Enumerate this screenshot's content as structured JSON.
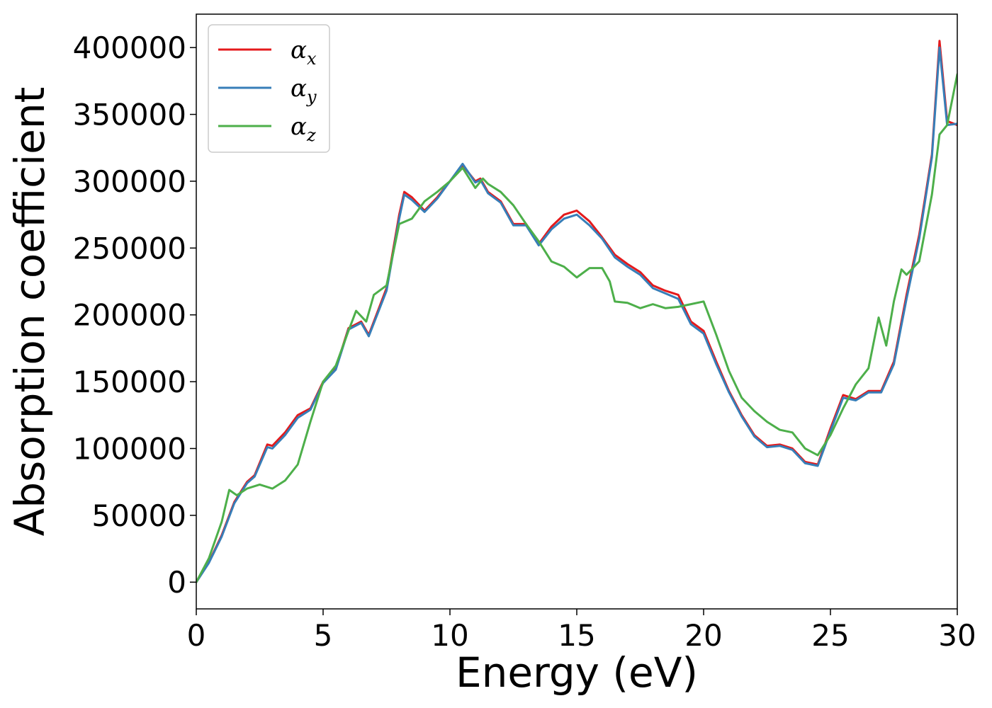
{
  "chart_data": {
    "type": "line",
    "title": "",
    "xlabel": "Energy (eV)",
    "ylabel": "Absorption coefficient",
    "xlim": [
      0,
      30
    ],
    "ylim": [
      -20000,
      425000
    ],
    "xticks": [
      0,
      5,
      10,
      15,
      20,
      25,
      30
    ],
    "yticks": [
      0,
      50000,
      100000,
      150000,
      200000,
      250000,
      300000,
      350000,
      400000
    ],
    "grid": false,
    "legend_position": "top-left",
    "series": [
      {
        "name": "α",
        "subscript": "x",
        "color": "#e41a1c",
        "x": [
          0,
          0.5,
          1.0,
          1.5,
          2.0,
          2.3,
          2.8,
          3.0,
          3.5,
          4.0,
          4.5,
          5.0,
          5.5,
          6.0,
          6.5,
          6.8,
          7.5,
          8.0,
          8.2,
          8.5,
          9.0,
          9.5,
          10.0,
          10.5,
          11.0,
          11.2,
          11.5,
          12.0,
          12.5,
          13.0,
          13.5,
          14.0,
          14.5,
          15.0,
          15.5,
          16.0,
          16.5,
          17.0,
          17.5,
          18.0,
          18.5,
          19.0,
          19.5,
          20.0,
          20.5,
          21.0,
          21.5,
          22.0,
          22.5,
          23.0,
          23.5,
          24.0,
          24.5,
          25.0,
          25.5,
          26.0,
          26.5,
          27.0,
          27.5,
          28.0,
          28.5,
          29.0,
          29.3,
          29.6,
          30.0
        ],
        "values": [
          0,
          15000,
          35000,
          60000,
          75000,
          80000,
          103000,
          102000,
          112000,
          125000,
          130000,
          150000,
          160000,
          190000,
          195000,
          185000,
          220000,
          275000,
          292000,
          288000,
          278000,
          288000,
          300000,
          312000,
          300000,
          302000,
          292000,
          285000,
          268000,
          268000,
          253000,
          266000,
          275000,
          278000,
          270000,
          258000,
          245000,
          238000,
          232000,
          222000,
          218000,
          215000,
          195000,
          188000,
          165000,
          143000,
          125000,
          110000,
          102000,
          103000,
          100000,
          90000,
          88000,
          115000,
          140000,
          137000,
          143000,
          143000,
          165000,
          215000,
          260000,
          320000,
          405000,
          345000,
          342000
        ]
      },
      {
        "name": "α",
        "subscript": "y",
        "color": "#377eb8",
        "x": [
          0,
          0.5,
          1.0,
          1.5,
          2.0,
          2.3,
          2.8,
          3.0,
          3.5,
          4.0,
          4.5,
          5.0,
          5.5,
          6.0,
          6.5,
          6.8,
          7.5,
          8.0,
          8.2,
          8.5,
          9.0,
          9.5,
          10.0,
          10.5,
          11.0,
          11.2,
          11.5,
          12.0,
          12.5,
          13.0,
          13.5,
          14.0,
          14.5,
          15.0,
          15.5,
          16.0,
          16.5,
          17.0,
          17.5,
          18.0,
          18.5,
          19.0,
          19.5,
          20.0,
          20.5,
          21.0,
          21.5,
          22.0,
          22.5,
          23.0,
          23.5,
          24.0,
          24.5,
          25.0,
          25.5,
          26.0,
          26.5,
          27.0,
          27.5,
          28.0,
          28.5,
          29.0,
          29.3,
          29.6,
          30.0
        ],
        "values": [
          0,
          14500,
          34000,
          59000,
          74000,
          79000,
          101000,
          100000,
          110000,
          123000,
          129000,
          149000,
          159000,
          189000,
          194000,
          184000,
          218000,
          272000,
          290000,
          286000,
          277000,
          287000,
          300000,
          313000,
          299000,
          301000,
          291000,
          284000,
          267000,
          267000,
          252000,
          264000,
          272000,
          275000,
          267000,
          257000,
          243000,
          236000,
          230000,
          220000,
          216000,
          212000,
          193000,
          186000,
          163000,
          142000,
          124000,
          109000,
          101000,
          102000,
          99000,
          89000,
          87000,
          113000,
          138000,
          136000,
          142000,
          142000,
          163000,
          212000,
          257000,
          318000,
          400000,
          342000,
          343000
        ]
      },
      {
        "name": "α",
        "subscript": "z",
        "color": "#4daf4a",
        "x": [
          0,
          0.5,
          1.0,
          1.3,
          1.6,
          2.0,
          2.5,
          3.0,
          3.5,
          4.0,
          4.5,
          5.0,
          5.5,
          6.0,
          6.3,
          6.7,
          7.0,
          7.5,
          8.0,
          8.5,
          9.0,
          9.5,
          10.0,
          10.5,
          11.0,
          11.3,
          11.5,
          12.0,
          12.5,
          13.0,
          13.5,
          14.0,
          14.5,
          15.0,
          15.5,
          16.0,
          16.3,
          16.5,
          17.0,
          17.5,
          18.0,
          18.5,
          19.0,
          19.5,
          20.0,
          20.5,
          21.0,
          21.5,
          22.0,
          22.5,
          23.0,
          23.5,
          24.0,
          24.5,
          25.0,
          25.5,
          26.0,
          26.5,
          26.9,
          27.2,
          27.5,
          27.8,
          28.0,
          28.5,
          29.0,
          29.3,
          29.6,
          30.0
        ],
        "values": [
          0,
          18000,
          45000,
          69000,
          65000,
          70000,
          73000,
          70000,
          76000,
          88000,
          120000,
          150000,
          162000,
          188000,
          203000,
          195000,
          215000,
          222000,
          268000,
          272000,
          285000,
          292000,
          300000,
          310000,
          295000,
          302000,
          298000,
          292000,
          282000,
          268000,
          255000,
          240000,
          236000,
          228000,
          235000,
          235000,
          225000,
          210000,
          209000,
          205000,
          208000,
          205000,
          206000,
          208000,
          210000,
          185000,
          158000,
          138000,
          128000,
          120000,
          114000,
          112000,
          100000,
          95000,
          110000,
          130000,
          148000,
          160000,
          198000,
          177000,
          210000,
          234000,
          230000,
          240000,
          290000,
          335000,
          342000,
          380000
        ]
      }
    ]
  }
}
